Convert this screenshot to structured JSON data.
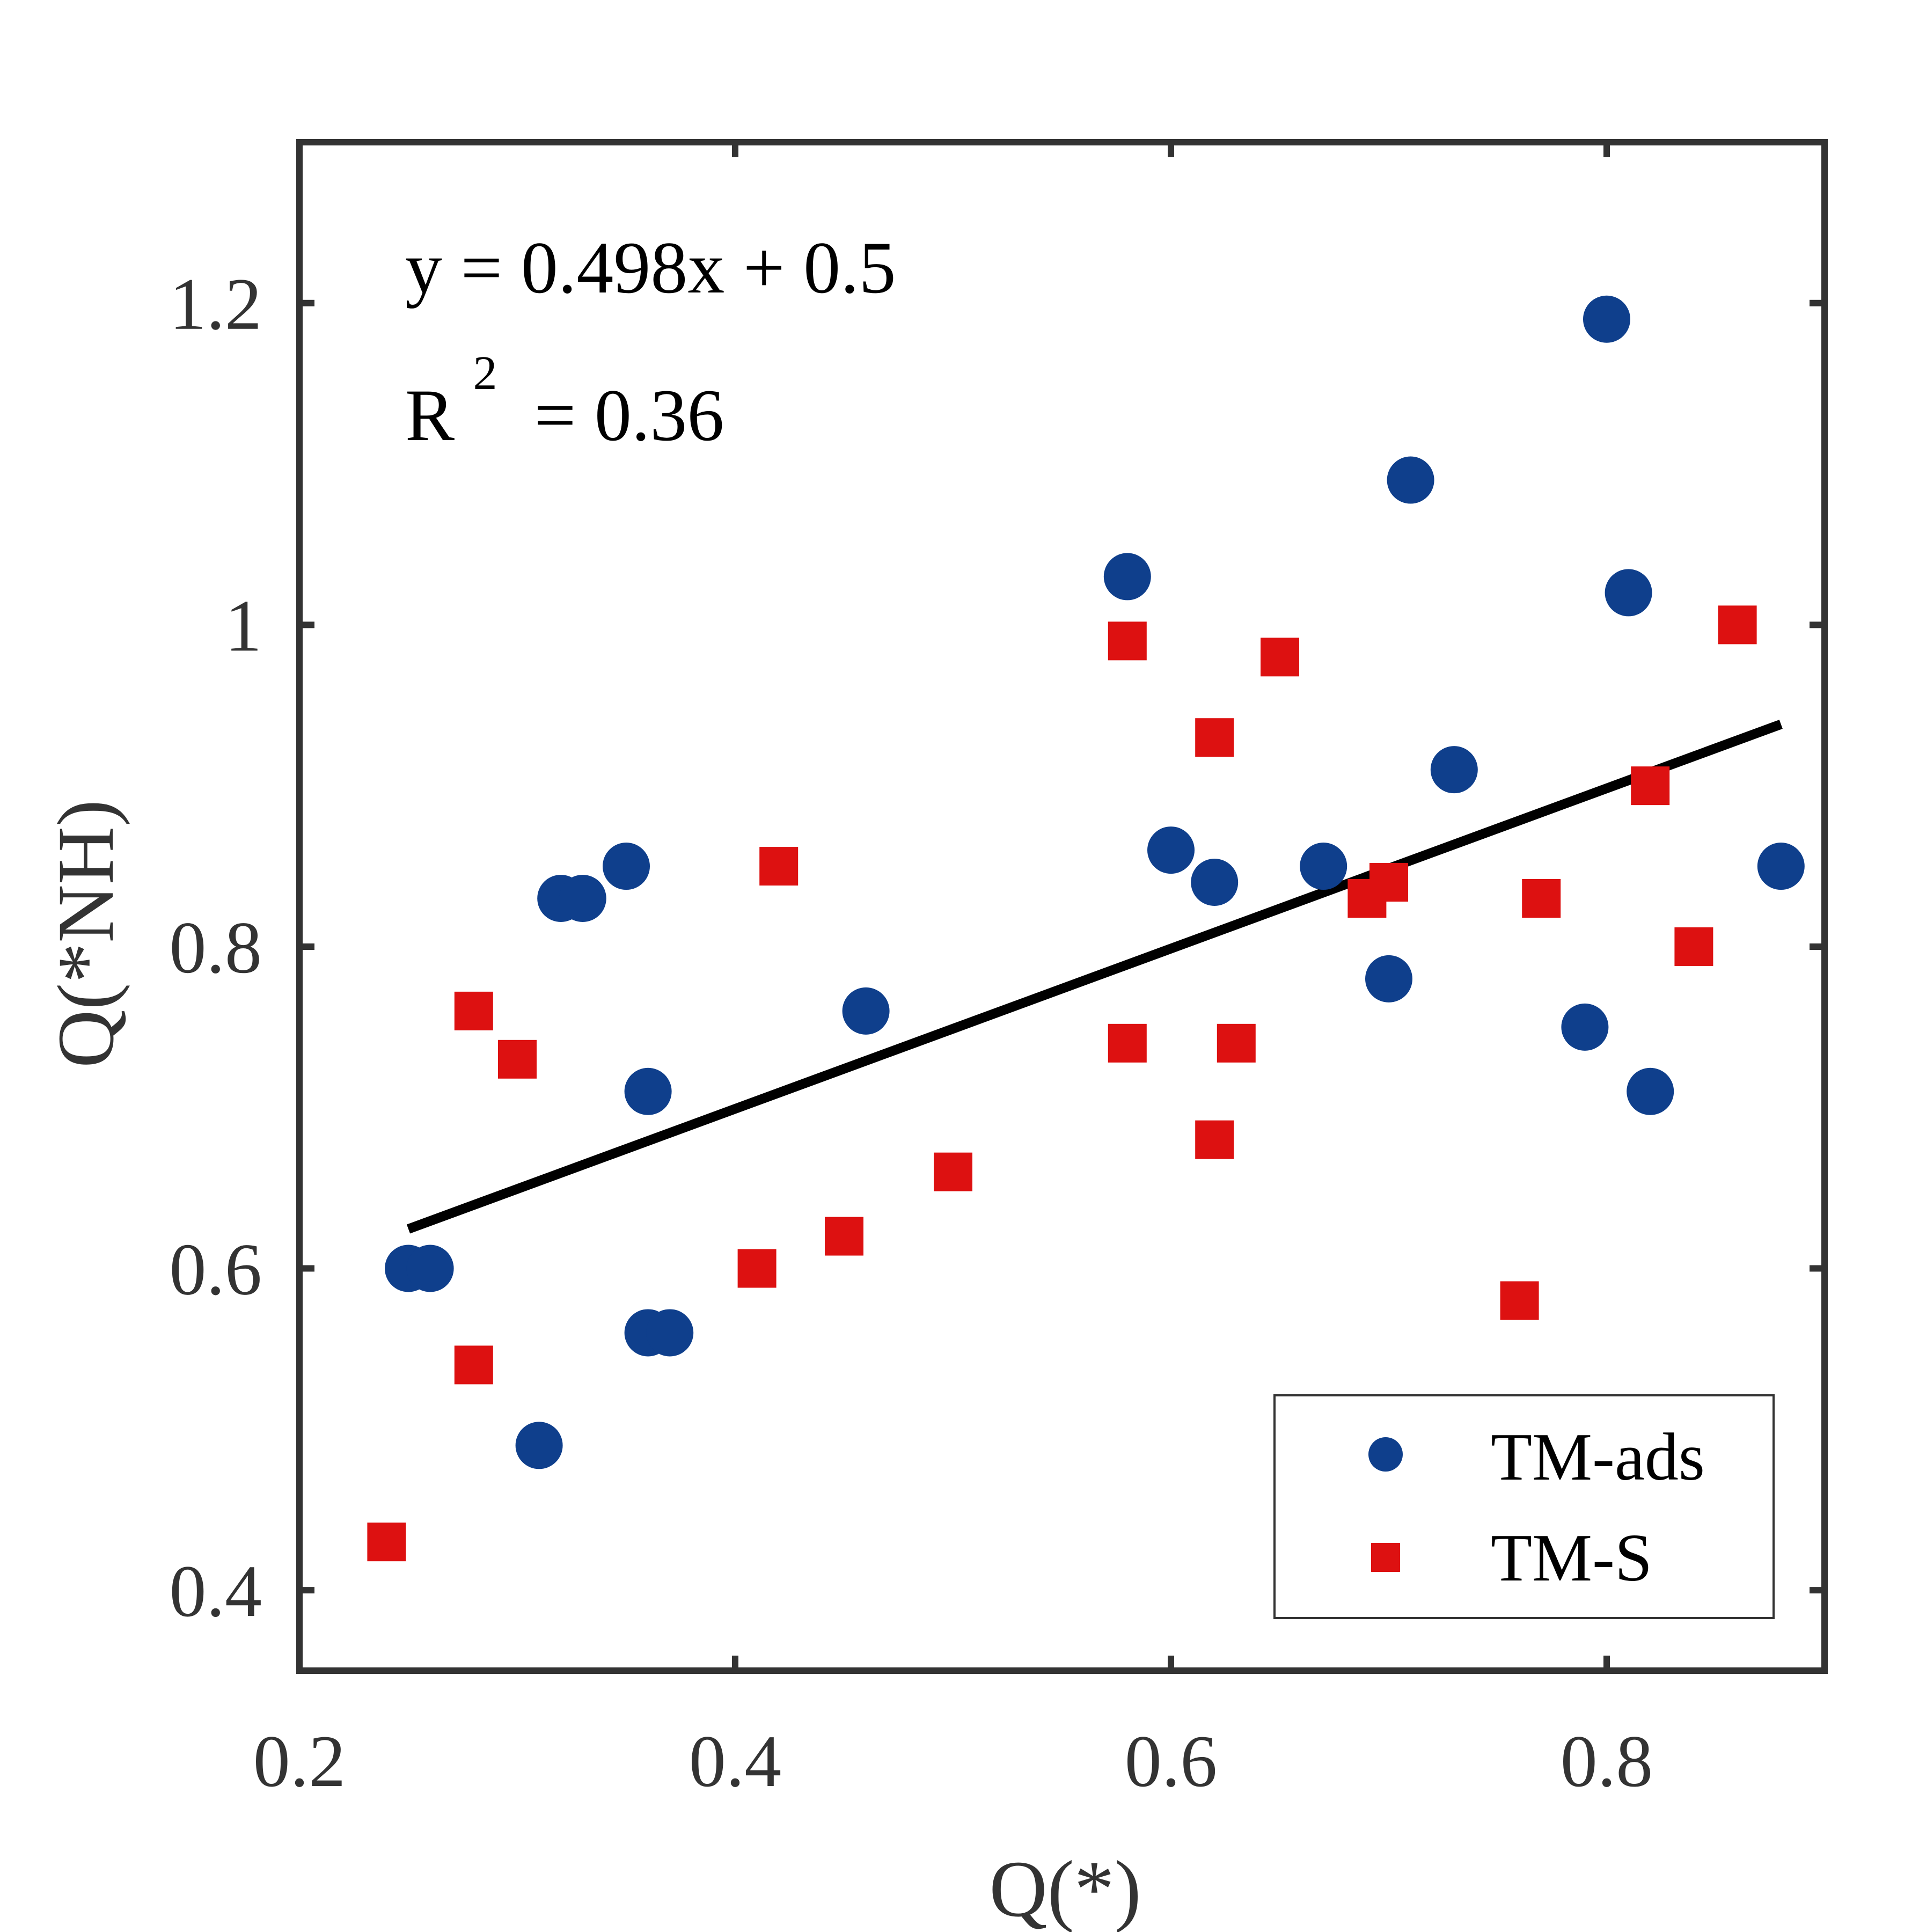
{
  "chart_data": {
    "type": "scatter",
    "xlabel": "Q(*)",
    "ylabel": "Q(*NH)",
    "xlim": [
      0.2,
      0.9
    ],
    "ylim": [
      0.35,
      1.3
    ],
    "x_ticks": [
      {
        "value": 0.2,
        "label": "0.2"
      },
      {
        "value": 0.4,
        "label": "0.4"
      },
      {
        "value": 0.6,
        "label": "0.6"
      },
      {
        "value": 0.8,
        "label": "0.8"
      }
    ],
    "y_ticks": [
      {
        "value": 0.4,
        "label": "0.4"
      },
      {
        "value": 0.6,
        "label": "0.6"
      },
      {
        "value": 0.8,
        "label": "0.8"
      },
      {
        "value": 1.0,
        "label": "1"
      },
      {
        "value": 1.2,
        "label": "1.2"
      }
    ],
    "grid": false,
    "legend_position": "bottom-right",
    "annotations": {
      "equation": "y = 0.498x + 0.5",
      "r2_prefix": "R",
      "r2_exponent": "2",
      "r2_value": " = 0.36"
    },
    "fit_line": {
      "slope": 0.498,
      "intercept": 0.5,
      "x_range": [
        0.25,
        0.88
      ]
    },
    "series": [
      {
        "name": "TM-ads",
        "marker": "circle",
        "color": "#0f3f8c",
        "points": [
          [
            0.25,
            0.6
          ],
          [
            0.26,
            0.6
          ],
          [
            0.31,
            0.49
          ],
          [
            0.32,
            0.83
          ],
          [
            0.33,
            0.83
          ],
          [
            0.35,
            0.85
          ],
          [
            0.36,
            0.71
          ],
          [
            0.36,
            0.56
          ],
          [
            0.37,
            0.56
          ],
          [
            0.46,
            0.76
          ],
          [
            0.58,
            1.03
          ],
          [
            0.6,
            0.86
          ],
          [
            0.62,
            0.84
          ],
          [
            0.67,
            0.85
          ],
          [
            0.7,
            0.78
          ],
          [
            0.71,
            1.09
          ],
          [
            0.73,
            0.91
          ],
          [
            0.79,
            0.75
          ],
          [
            0.8,
            1.19
          ],
          [
            0.81,
            1.02
          ],
          [
            0.82,
            0.71
          ],
          [
            0.88,
            0.85
          ]
        ]
      },
      {
        "name": "TM-S",
        "marker": "square",
        "color": "#dd1111",
        "points": [
          [
            0.24,
            0.43
          ],
          [
            0.28,
            0.76
          ],
          [
            0.28,
            0.54
          ],
          [
            0.3,
            0.73
          ],
          [
            0.41,
            0.6
          ],
          [
            0.42,
            0.85
          ],
          [
            0.45,
            0.62
          ],
          [
            0.5,
            0.66
          ],
          [
            0.58,
            0.99
          ],
          [
            0.58,
            0.74
          ],
          [
            0.62,
            0.93
          ],
          [
            0.62,
            0.68
          ],
          [
            0.63,
            0.74
          ],
          [
            0.65,
            0.98
          ],
          [
            0.69,
            0.83
          ],
          [
            0.7,
            0.84
          ],
          [
            0.76,
            0.58
          ],
          [
            0.77,
            0.83
          ],
          [
            0.82,
            0.9
          ],
          [
            0.84,
            0.8
          ],
          [
            0.86,
            1.0
          ]
        ]
      }
    ]
  }
}
